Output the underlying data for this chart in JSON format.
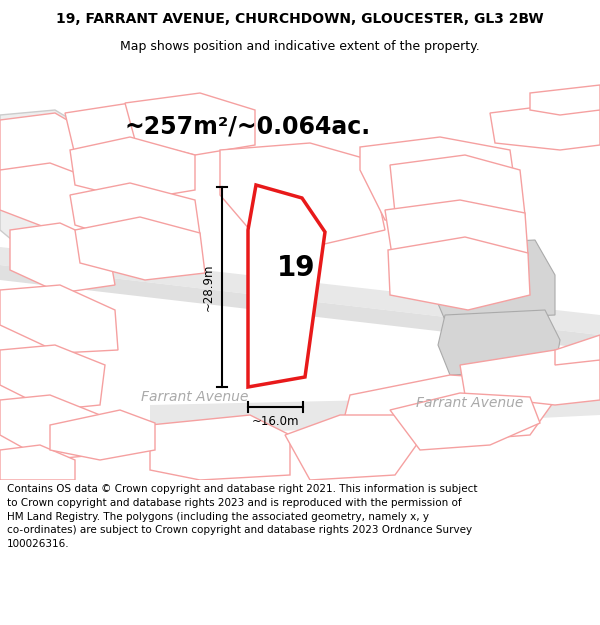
{
  "title_line1": "19, FARRANT AVENUE, CHURCHDOWN, GLOUCESTER, GL3 2BW",
  "title_line2": "Map shows position and indicative extent of the property.",
  "area_label": "~257m²/~0.064ac.",
  "property_number": "19",
  "dim_height": "~28.9m",
  "dim_width": "~16.0m",
  "street_label_left": "Farrant Avenue",
  "street_label_right": "Farrant Avenue",
  "footer_text": "Contains OS data © Crown copyright and database right 2021. This information is subject\nto Crown copyright and database rights 2023 and is reproduced with the permission of\nHM Land Registry. The polygons (including the associated geometry, namely x, y\nco-ordinates) are subject to Crown copyright and database rights 2023 Ordnance Survey\n100026316.",
  "bg_color": "#ffffff",
  "highlight_color": "#e8191a",
  "pink_color": "#f5a0a0",
  "title_fontsize": 10,
  "subtitle_fontsize": 9,
  "area_fontsize": 17,
  "property_num_fontsize": 20,
  "dim_fontsize": 8.5,
  "street_fontsize": 10,
  "footer_fontsize": 7.5
}
